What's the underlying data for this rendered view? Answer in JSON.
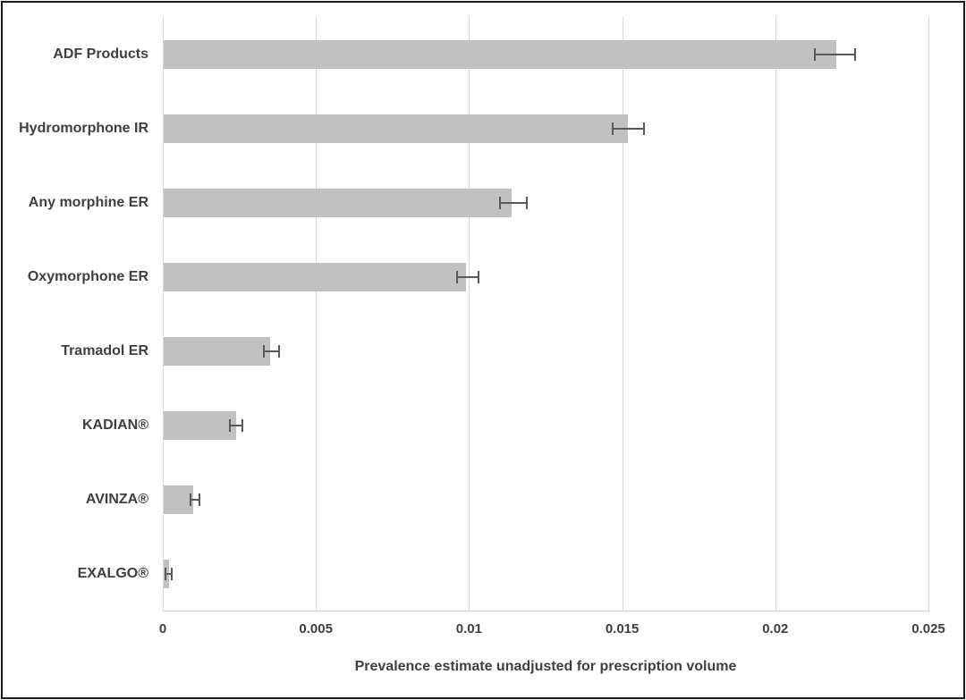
{
  "chart_data": {
    "type": "bar",
    "orientation": "horizontal",
    "title": "",
    "xlabel": "Prevalence estimate unadjusted for prescription volume",
    "ylabel": "",
    "xlim": [
      0,
      0.025
    ],
    "grid": "vertical",
    "legend": "none",
    "categories": [
      "ADF Products",
      "Hydromorphone IR",
      "Any morphine ER",
      "Oxymorphone ER",
      "Tramadol ER",
      "KADIAN®",
      "AVINZA®",
      "EXALGO®"
    ],
    "series": [
      {
        "name": "Prevalence estimate",
        "values": [
          0.022,
          0.0152,
          0.0114,
          0.0099,
          0.0035,
          0.0024,
          0.001,
          0.0002
        ],
        "ci_low": [
          0.0213,
          0.0147,
          0.011,
          0.0096,
          0.0033,
          0.0022,
          0.0009,
          0.0001
        ],
        "ci_high": [
          0.0226,
          0.0157,
          0.0119,
          0.0103,
          0.0038,
          0.0026,
          0.0012,
          0.0003
        ]
      }
    ],
    "xticks": [
      {
        "value": 0,
        "label": "0"
      },
      {
        "value": 0.005,
        "label": "0.005"
      },
      {
        "value": 0.01,
        "label": "0.01"
      },
      {
        "value": 0.015,
        "label": "0.015"
      },
      {
        "value": 0.02,
        "label": "0.02"
      },
      {
        "value": 0.025,
        "label": "0.025"
      }
    ],
    "colors": {
      "bar_fill": "#c1c1c1",
      "error_bar": "#595959",
      "gridline": "#d9d9d9",
      "text": "#3f3f3f",
      "frame_border": "#1a1a1a",
      "background": "#ffffff"
    }
  }
}
